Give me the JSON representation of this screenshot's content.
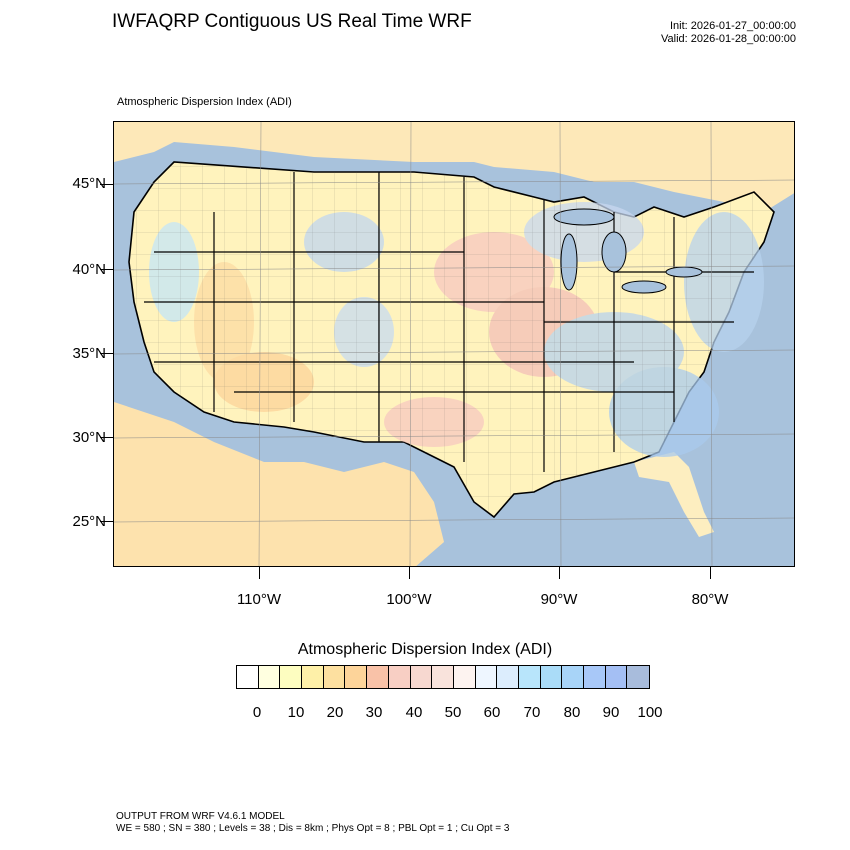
{
  "header": {
    "title": "IWFAQRP Contiguous US Real Time WRF",
    "init": "Init: 2026-01-27_00:00:00",
    "valid": "Valid: 2026-01-28_00:00:00"
  },
  "plot": {
    "label": "Atmospheric Dispersion Index   (ADI)"
  },
  "axes": {
    "lat_labels": [
      "45°N",
      "40°N",
      "35°N",
      "30°N",
      "25°N"
    ],
    "lon_labels": [
      "110°W",
      "100°W",
      "90°W",
      "80°W"
    ]
  },
  "colorbar": {
    "title": "Atmospheric Dispersion Index  (ADI)",
    "tick_labels": [
      "0",
      "10",
      "20",
      "30",
      "40",
      "50",
      "60",
      "70",
      "80",
      "90",
      "100"
    ],
    "colors": [
      "#ffffff",
      "#ffffe0",
      "#fdfdc0",
      "#fef0a8",
      "#fde0a0",
      "#fdd49a",
      "#f9c2a8",
      "#f8cfc4",
      "#f7d8d0",
      "#f9e3dc",
      "#fdf3f0",
      "#eef6ff",
      "#dcedfd",
      "#b8e5fb",
      "#aadcf8",
      "#a8d4f8",
      "#a8c8f8",
      "#a4bff4",
      "#a8bcdc"
    ]
  },
  "map": {
    "ocean_color": "#a8c2dc",
    "land_colors": {
      "light_yellow": "#fff7c0",
      "orange": "#fde0a6",
      "pink": "#f7c8c0",
      "blue": "#b7d2ee",
      "cyan": "#c4e6f8"
    }
  },
  "footer": {
    "line1": "OUTPUT FROM WRF V4.6.1 MODEL",
    "line2": "WE = 580 ; SN = 380 ; Levels = 38 ; Dis = 8km ; Phys Opt = 8 ; PBL Opt = 1 ; Cu Opt = 3"
  }
}
